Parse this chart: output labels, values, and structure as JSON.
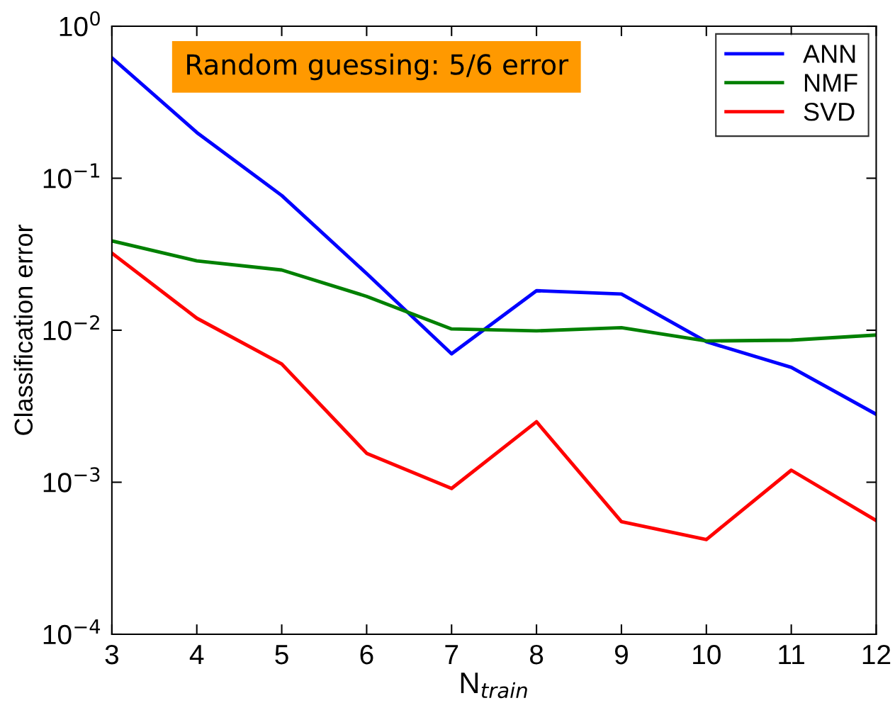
{
  "chart_data": {
    "type": "line",
    "xlabel": "N$_{train}$",
    "ylabel": "Classification error",
    "x": [
      3,
      4,
      5,
      6,
      7,
      8,
      9,
      10,
      11,
      12
    ],
    "series": [
      {
        "name": "ANN",
        "color": "#0000ff",
        "values": [
          0.62,
          0.2,
          0.077,
          0.0236,
          0.007,
          0.0182,
          0.0173,
          0.0084,
          0.0057,
          0.0028
        ]
      },
      {
        "name": "NMF",
        "color": "#008000",
        "values": [
          0.0387,
          0.0286,
          0.0249,
          0.0167,
          0.0102,
          0.0099,
          0.0104,
          0.0085,
          0.0086,
          0.0093
        ]
      },
      {
        "name": "SVD",
        "color": "#ff0000",
        "values": [
          0.0322,
          0.012,
          0.006,
          0.00155,
          0.00091,
          0.0025,
          0.00055,
          0.00042,
          0.0012,
          0.00056
        ]
      }
    ],
    "log": "y",
    "xlim": [
      3,
      12
    ],
    "xticks": [
      3,
      4,
      5,
      6,
      7,
      8,
      9,
      10,
      11,
      12
    ],
    "ylim": [
      0.0001,
      1
    ],
    "yticks": [
      {
        "value": 0.0001,
        "label": "10$^{−4}$"
      },
      {
        "value": 0.001,
        "label": "10$^{−3}$"
      },
      {
        "value": 0.01,
        "label": "10$^{−2}$"
      },
      {
        "value": 0.1,
        "label": "10$^{−1}$"
      },
      {
        "value": 1,
        "label": "10$^{0}$"
      }
    ],
    "annotations": [
      "Random guessing: 5/6 error"
    ],
    "legend": "top right",
    "grid": false,
    "line_style": "solid",
    "marker": "none"
  }
}
